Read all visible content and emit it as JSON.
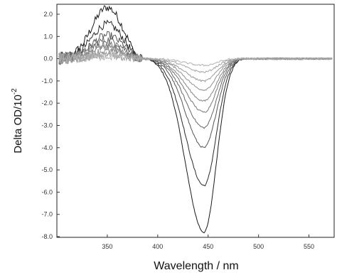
{
  "chart_data": {
    "type": "line",
    "title": "",
    "xlabel": "Wavelength / nm",
    "ylabel_main": "Delta OD/10",
    "ylabel_exp": "-2",
    "xlim": [
      300,
      575
    ],
    "ylim": [
      -8.0,
      2.5
    ],
    "x_ticks": [
      350,
      400,
      450,
      500,
      550
    ],
    "x_tick_labels": [
      "350",
      "400",
      "450",
      "500",
      "550"
    ],
    "y_ticks": [
      2.0,
      1.0,
      0.0,
      -1.0,
      -2.0,
      -3.0,
      -4.0,
      -5.0,
      -6.0,
      -7.0,
      -8.0
    ],
    "y_tick_labels": [
      "2.0",
      "1.0",
      "0.0",
      "-1.0",
      "-2.0",
      "-3.0",
      "-4.0",
      "-5.0",
      "-6.0",
      "-7.0",
      "-8.0"
    ],
    "grid": false,
    "legend": "none",
    "series": [
      {
        "color": "#1a1a1a",
        "trough": -7.8,
        "peak": 2.3
      },
      {
        "color": "#2a2a2a",
        "trough": -5.7,
        "peak": 1.55
      },
      {
        "color": "#555555",
        "trough": -4.0,
        "peak": 1.05
      },
      {
        "color": "#666666",
        "trough": -3.1,
        "peak": 0.85
      },
      {
        "color": "#777777",
        "trough": -2.4,
        "peak": 0.65
      },
      {
        "color": "#858585",
        "trough": -1.9,
        "peak": 0.5
      },
      {
        "color": "#909090",
        "trough": -1.4,
        "peak": 0.35
      },
      {
        "color": "#9a9a9a",
        "trough": -1.0,
        "peak": 0.25
      },
      {
        "color": "#a5a5a5",
        "trough": -0.6,
        "peak": 0.15
      },
      {
        "color": "#b0b0b0",
        "trough": -0.3,
        "peak": 0.1
      }
    ]
  }
}
